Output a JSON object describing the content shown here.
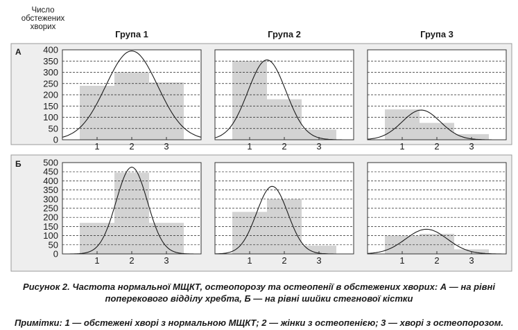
{
  "y_axis_title": [
    "Число",
    "обстежених",
    "хворих"
  ],
  "column_titles": [
    "Група 1",
    "Група 2",
    "Група 3"
  ],
  "row_labels": [
    "А",
    "Б"
  ],
  "caption": [
    "Рисунок 2. Частота нормальної МЩКТ, остеопорозу та остеопенії в обстежених хворих: А — на рівні",
    "поперекового відділу хребта, Б — на рівні шийки стегнової кістки"
  ],
  "note": "Примітки: 1 — обстежені хворі з нормальною МЩКТ; 2 — жінки з остеопенією; 3 — хворі з остеопорозом.",
  "colors": {
    "bar": "#d3d3d3",
    "curve": "#1a1a1a",
    "frame": "#333333",
    "row_panel": "#eeeeee"
  },
  "chart_data": [
    {
      "type": "bar",
      "row": "А",
      "title": "Група 1",
      "categories": [
        "1",
        "2",
        "3"
      ],
      "values": [
        240,
        300,
        255
      ],
      "ylim": [
        0,
        400
      ],
      "yticks": [
        0,
        50,
        100,
        150,
        200,
        250,
        300,
        350,
        400
      ],
      "xlim": [
        0,
        4
      ],
      "curve": {
        "peak_x": 2.0,
        "peak_y": 395,
        "sd": 0.75
      },
      "grid": true
    },
    {
      "type": "bar",
      "row": "А",
      "title": "Група 2",
      "categories": [
        "1",
        "2",
        "3"
      ],
      "values": [
        350,
        180,
        45
      ],
      "ylim": [
        0,
        400
      ],
      "yticks": [
        0,
        50,
        100,
        150,
        200,
        250,
        300,
        350,
        400
      ],
      "xlim": [
        0,
        4
      ],
      "curve": {
        "peak_x": 1.5,
        "peak_y": 355,
        "sd": 0.55
      },
      "grid": true
    },
    {
      "type": "bar",
      "row": "А",
      "title": "Група 3",
      "categories": [
        "1",
        "2",
        "3"
      ],
      "values": [
        135,
        75,
        25
      ],
      "ylim": [
        0,
        400
      ],
      "yticks": [
        0,
        50,
        100,
        150,
        200,
        250,
        300,
        350,
        400
      ],
      "xlim": [
        0,
        4
      ],
      "curve": {
        "peak_x": 1.55,
        "peak_y": 132,
        "sd": 0.55
      },
      "grid": true
    },
    {
      "type": "bar",
      "row": "Б",
      "title": "Група 1",
      "categories": [
        "1",
        "2",
        "3"
      ],
      "values": [
        170,
        445,
        170
      ],
      "ylim": [
        0,
        500
      ],
      "yticks": [
        0,
        50,
        100,
        150,
        200,
        250,
        300,
        350,
        400,
        450,
        500
      ],
      "xlim": [
        0,
        4
      ],
      "curve": {
        "peak_x": 2.0,
        "peak_y": 475,
        "sd": 0.45
      },
      "grid": true
    },
    {
      "type": "bar",
      "row": "Б",
      "title": "Група 2",
      "categories": [
        "1",
        "2",
        "3"
      ],
      "values": [
        230,
        300,
        45
      ],
      "ylim": [
        0,
        500
      ],
      "yticks": [
        0,
        50,
        100,
        150,
        200,
        250,
        300,
        350,
        400,
        450,
        500
      ],
      "xlim": [
        0,
        4
      ],
      "curve": {
        "peak_x": 1.65,
        "peak_y": 370,
        "sd": 0.45
      },
      "grid": true
    },
    {
      "type": "bar",
      "row": "Б",
      "title": "Група 3",
      "categories": [
        "1",
        "2",
        "3"
      ],
      "values": [
        100,
        110,
        25
      ],
      "ylim": [
        0,
        500
      ],
      "yticks": [
        0,
        50,
        100,
        150,
        200,
        250,
        300,
        350,
        400,
        450,
        500
      ],
      "xlim": [
        0,
        4
      ],
      "curve": {
        "peak_x": 1.7,
        "peak_y": 135,
        "sd": 0.6
      },
      "grid": true
    }
  ]
}
